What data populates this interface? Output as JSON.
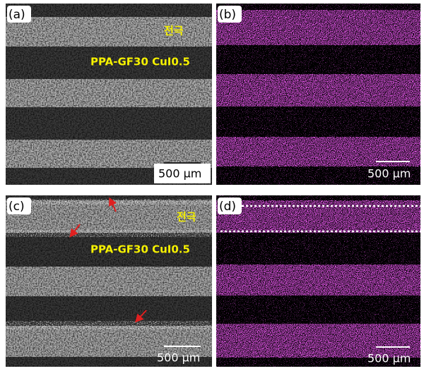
{
  "panels": [
    {
      "label": "(a)",
      "electrode_label": "전극",
      "sample_label": "PPA-GF30 CuI0.5",
      "scale_bar": "500 μm"
    },
    {
      "label": "(b)",
      "scale_bar": "500 μm"
    },
    {
      "label": "(c)",
      "electrode_label": "전극",
      "sample_label": "PPA-GF30 CuI0.5",
      "scale_bar": "500 μm"
    },
    {
      "label": "(d)",
      "scale_bar": "500 μm"
    }
  ]
}
